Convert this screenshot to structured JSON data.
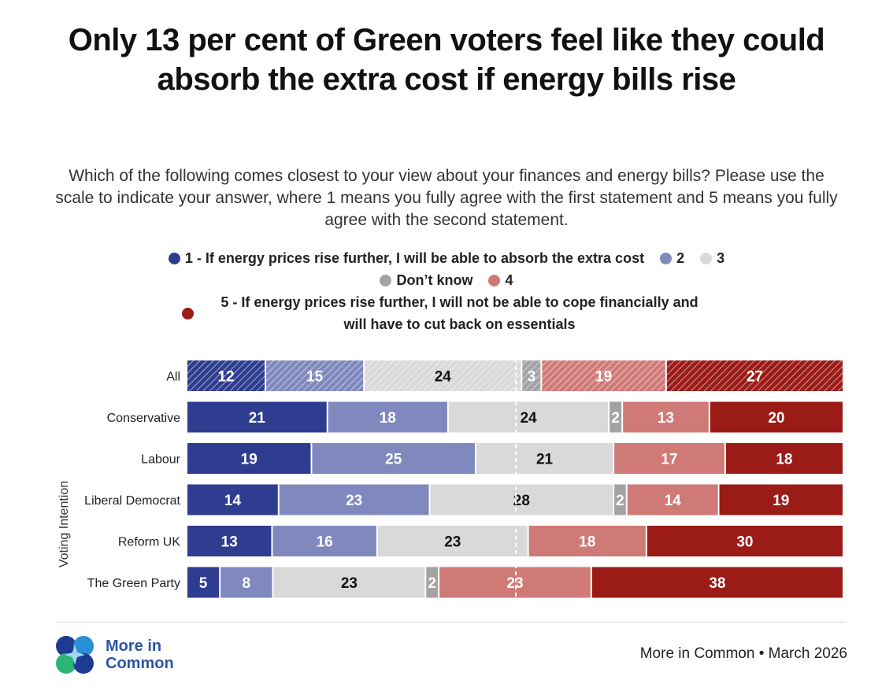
{
  "title": "Only 13 per cent of Green voters feel like they could absorb the extra cost if energy bills rise",
  "subtitle": "Which of the following comes closest to your view about your finances and energy bills? Please use the scale to indicate your answer, where 1 means you fully agree with the first statement and 5 means you fully agree with the second statement.",
  "legend": {
    "l1": "1 - If energy prices rise further, I will be able to absorb the extra cost",
    "l2": "2",
    "l3": "3",
    "ldk": "Don’t know",
    "l4": "4",
    "l5": "5 - If energy prices rise further, I will not be able to cope financially and will have to cut back on essentials"
  },
  "colors": {
    "s1": "#2e3d8f",
    "s2": "#8089be",
    "s3": "#d9d9d9",
    "dk": "#a3a3a3",
    "s4": "#d07a78",
    "s5": "#9b1c17"
  },
  "chart_data": {
    "type": "bar",
    "orientation": "horizontal",
    "stacked": true,
    "ylabel": "Voting Intention",
    "categories": [
      "All",
      "Conservative",
      "Labour",
      "Liberal Democrat",
      "Reform UK",
      "The Green Party"
    ],
    "series": [
      {
        "name": "1",
        "key": "s1",
        "values": [
          12,
          21,
          19,
          14,
          13,
          5
        ]
      },
      {
        "name": "2",
        "key": "s2",
        "values": [
          15,
          18,
          25,
          23,
          16,
          8
        ]
      },
      {
        "name": "3",
        "key": "s3",
        "values": [
          24,
          24,
          21,
          28,
          23,
          23
        ]
      },
      {
        "name": "Don’t know",
        "key": "dk",
        "values": [
          3,
          2,
          0,
          2,
          0,
          2
        ]
      },
      {
        "name": "4",
        "key": "s4",
        "values": [
          19,
          13,
          17,
          14,
          18,
          23
        ]
      },
      {
        "name": "5",
        "key": "s5",
        "values": [
          27,
          20,
          18,
          19,
          30,
          38
        ]
      }
    ],
    "hatched_rows": [
      "All"
    ],
    "midline": 50
  },
  "footer": {
    "logo_line1": "More in",
    "logo_line2": "Common",
    "source": "More in Common • March 2026"
  }
}
